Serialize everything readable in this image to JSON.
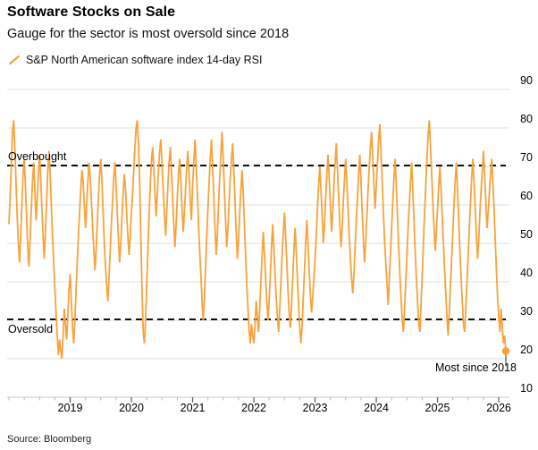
{
  "header": {
    "title": "Software Stocks on Sale",
    "subtitle": "Gauge for the sector is most oversold since 2018"
  },
  "footer": {
    "source": "Source: Bloomberg"
  },
  "chart_data": {
    "type": "line",
    "title": "Software Stocks on Sale",
    "subtitle": "Gauge for the sector is most oversold since 2018",
    "xlabel": "",
    "ylabel": "14-day RSI",
    "ylim": [
      10,
      90
    ],
    "y_ticks": [
      90,
      80,
      70,
      60,
      50,
      40,
      30,
      20,
      10
    ],
    "x_ticks": [
      2019,
      2020,
      2021,
      2022,
      2023,
      2024,
      2025,
      2026
    ],
    "x_start_year": 2018.0,
    "x_end_year": 2026.13,
    "points_per_year": 52,
    "grid": true,
    "legend_position": "top-left",
    "axis_colors": {
      "gridline": "#e2e2e2",
      "axis_line": "#c9c9c9",
      "major_tick": "#666666",
      "minor_tick": "#b8b8b8"
    },
    "reference_lines": [
      {
        "label": "Overbought",
        "value": 70,
        "color": "#111111",
        "style": "dashed"
      },
      {
        "label": "Oversold",
        "value": 30,
        "color": "#111111",
        "style": "dashed"
      }
    ],
    "annotation": {
      "text": "Most since 2018",
      "value": 22,
      "year": 2026.12
    },
    "series": [
      {
        "name": "S&P North American software index 14-day RSI",
        "color": "#F8A33A",
        "values": [
          55,
          62,
          70,
          79,
          82,
          75,
          66,
          57,
          50,
          45,
          52,
          60,
          68,
          72,
          65,
          57,
          49,
          44,
          51,
          59,
          66,
          71,
          64,
          56,
          61,
          68,
          73,
          67,
          59,
          52,
          46,
          53,
          61,
          69,
          74,
          68,
          60,
          52,
          45,
          38,
          32,
          26,
          21,
          25,
          22,
          20,
          26,
          33,
          29,
          25,
          31,
          38,
          42,
          35,
          28,
          24,
          30,
          38,
          45,
          52,
          58,
          64,
          69,
          66,
          60,
          54,
          60,
          66,
          71,
          67,
          61,
          55,
          49,
          43,
          48,
          55,
          62,
          68,
          72,
          66,
          58,
          50,
          44,
          39,
          35,
          41,
          48,
          55,
          61,
          67,
          71,
          65,
          58,
          51,
          45,
          50,
          57,
          63,
          68,
          64,
          58,
          52,
          47,
          52,
          58,
          63,
          69,
          75,
          80,
          82,
          76,
          66,
          52,
          38,
          27,
          24,
          30,
          39,
          48,
          57,
          65,
          71,
          75,
          70,
          63,
          57,
          63,
          69,
          74,
          77,
          71,
          64,
          58,
          52,
          58,
          65,
          71,
          75,
          69,
          62,
          55,
          49,
          55,
          62,
          68,
          72,
          66,
          59,
          53,
          58,
          64,
          70,
          74,
          68,
          61,
          56,
          65,
          71,
          77,
          71,
          63,
          55,
          48,
          42,
          35,
          30,
          36,
          44,
          52,
          59,
          66,
          72,
          77,
          70,
          62,
          54,
          47,
          52,
          60,
          67,
          73,
          79,
          72,
          64,
          56,
          49,
          54,
          61,
          67,
          72,
          76,
          69,
          61,
          53,
          46,
          51,
          58,
          64,
          69,
          63,
          55,
          47,
          39,
          33,
          27,
          24,
          29,
          26,
          24,
          29,
          35,
          31,
          27,
          33,
          40,
          47,
          53,
          47,
          41,
          35,
          30,
          35,
          42,
          49,
          55,
          49,
          42,
          36,
          31,
          27,
          33,
          40,
          47,
          53,
          58,
          52,
          45,
          38,
          32,
          28,
          34,
          41,
          48,
          54,
          48,
          41,
          34,
          28,
          24,
          29,
          36,
          43,
          50,
          56,
          50,
          43,
          37,
          32,
          36,
          41,
          46,
          52,
          59,
          65,
          70,
          64,
          57,
          50,
          55,
          62,
          68,
          73,
          67,
          60,
          53,
          58,
          65,
          71,
          76,
          69,
          62,
          55,
          49,
          54,
          61,
          67,
          72,
          66,
          59,
          52,
          46,
          41,
          37,
          42,
          49,
          56,
          62,
          68,
          73,
          66,
          58,
          51,
          45,
          50,
          57,
          64,
          70,
          75,
          79,
          72,
          65,
          59,
          65,
          71,
          77,
          81,
          74,
          66,
          58,
          51,
          45,
          40,
          34,
          40,
          47,
          54,
          61,
          67,
          72,
          65,
          57,
          49,
          42,
          36,
          30,
          27,
          33,
          40,
          47,
          54,
          60,
          66,
          71,
          64,
          56,
          48,
          41,
          35,
          29,
          27,
          34,
          42,
          50,
          58,
          65,
          72,
          78,
          82,
          75,
          68,
          61,
          54,
          48,
          53,
          59,
          65,
          70,
          64,
          57,
          50,
          43,
          37,
          31,
          26,
          32,
          39,
          46,
          53,
          60,
          66,
          71,
          64,
          56,
          48,
          41,
          35,
          29,
          27,
          33,
          40,
          47,
          54,
          61,
          67,
          72,
          66,
          59,
          52,
          46,
          51,
          58,
          64,
          69,
          74,
          68,
          61,
          54,
          58,
          63,
          68,
          72,
          66,
          59,
          51,
          43,
          36,
          31,
          27,
          33,
          28,
          24,
          26,
          22
        ]
      }
    ]
  }
}
